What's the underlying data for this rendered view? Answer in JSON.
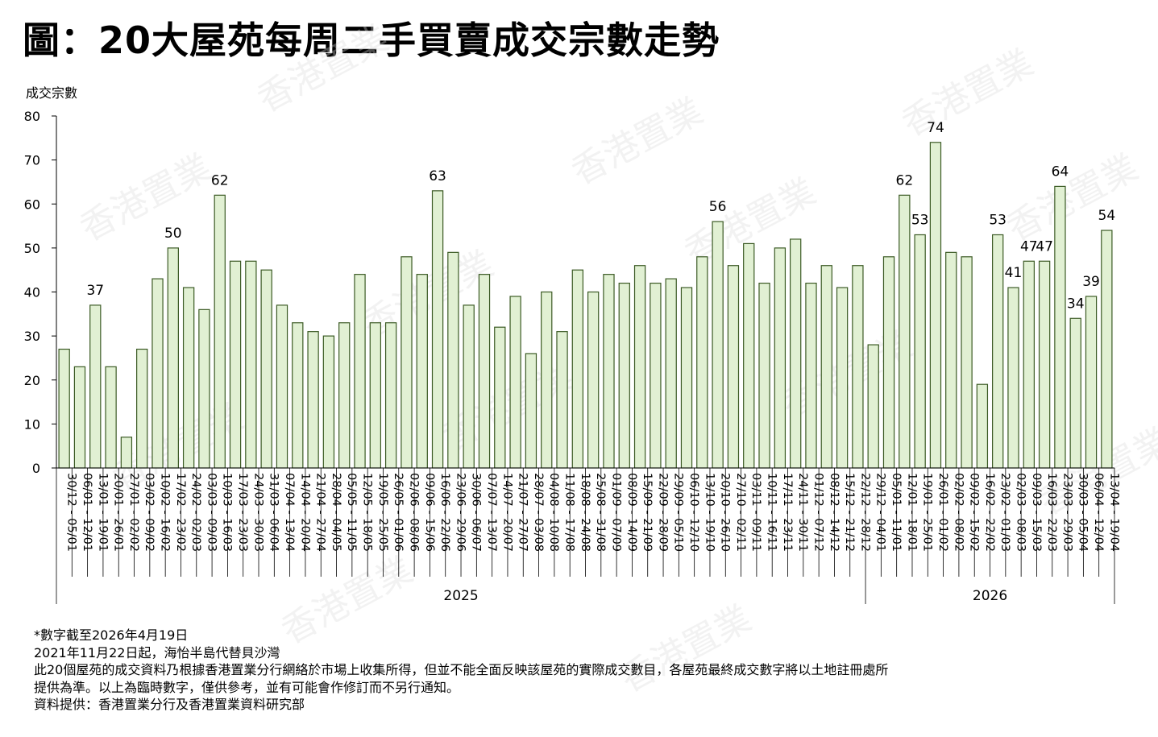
{
  "title": "圖：20大屋苑每周二手買賣成交宗數走勢",
  "notes": [
    "*數字截至2026年4月19日",
    "2021年11月22日起，海怡半島代替貝沙灣",
    "此20個屋苑的成交資料乃根據香港置業分行網絡於市場上收集所得，但並不能全面反映該屋苑的實際成交數目，各屋苑最終成交數字將以土地註冊處所",
    "提供為準。以上為臨時數字，僅供參考，並有可能會作修訂而不另行通知。",
    "資料提供：香港置業分行及香港置業資料研究部"
  ],
  "watermark": "香港置業",
  "colors": {
    "bar_fill": "#e1f0d3",
    "bar_stroke": "#3b5a24"
  },
  "chart_data": {
    "type": "bar",
    "ylabel": "成交宗數",
    "ylim": [
      0,
      80
    ],
    "yticks": [
      0,
      10,
      20,
      30,
      40,
      50,
      60,
      70,
      80
    ],
    "grid": false,
    "categories": [
      "30/12 - 05/01",
      "06/01 - 12/01",
      "13/01 - 19/01",
      "20/01 - 26/01",
      "27/01 - 02/02",
      "03/02 - 09/02",
      "10/02 - 16/02",
      "17/02 - 23/02",
      "24/02 - 02/03",
      "03/03 - 09/03",
      "10/03 - 16/03",
      "17/03 - 23/03",
      "24/03 - 30/03",
      "31/03 - 06/04",
      "07/04 - 13/04",
      "14/04 - 20/04",
      "21/04 - 27/04",
      "28/04 - 04/05",
      "05/05 - 11/05",
      "12/05 - 18/05",
      "19/05 - 25/05",
      "26/05 - 01/06",
      "02/06 - 08/06",
      "09/06 - 15/06",
      "16/06 - 22/06",
      "23/06 - 29/06",
      "30/06 - 06/07",
      "07/07 - 13/07",
      "14/07 - 20/07",
      "21/07 - 27/07",
      "28/07 - 03/08",
      "04/08 - 10/08",
      "11/08 - 17/08",
      "18/08 - 24/08",
      "25/08 - 31/08",
      "01/09 - 07/09",
      "08/09 - 14/09",
      "15/09 - 21/09",
      "22/09 - 28/09",
      "29/09 - 05/10",
      "06/10 - 12/10",
      "13/10 - 19/10",
      "20/10 - 26/10",
      "27/10 - 02/11",
      "03/11 - 09/11",
      "10/11 - 16/11",
      "17/11 - 23/11",
      "24/11 - 30/11",
      "01/12 - 07/12",
      "08/12 - 14/12",
      "15/12 - 21/12",
      "22/12 - 28/12",
      "29/12 - 04/01",
      "05/01 - 11/01",
      "12/01 - 18/01",
      "19/01 - 25/01",
      "26/01 - 01/02",
      "02/02 - 08/02",
      "09/02 - 15/02",
      "16/02 - 22/02",
      "23/02 - 01/03",
      "02/03 - 08/03",
      "09/03 - 15/03",
      "16/03 - 22/03",
      "23/03 - 29/03",
      "30/03 - 05/04",
      "06/04 - 12/04",
      "13/04 - 19/04"
    ],
    "values": [
      27,
      23,
      37,
      23,
      7,
      27,
      43,
      50,
      41,
      36,
      62,
      47,
      47,
      45,
      37,
      33,
      31,
      30,
      33,
      44,
      33,
      33,
      48,
      44,
      63,
      49,
      37,
      44,
      32,
      39,
      26,
      40,
      31,
      45,
      40,
      44,
      42,
      46,
      42,
      43,
      41,
      48,
      56,
      46,
      51,
      42,
      50,
      52,
      42,
      46,
      41,
      46,
      28,
      48,
      62,
      53,
      74,
      49,
      48,
      19,
      53,
      41,
      47,
      47,
      64,
      34,
      39,
      54
    ],
    "data_labels": [
      {
        "index": 2,
        "text": "37"
      },
      {
        "index": 7,
        "text": "50"
      },
      {
        "index": 10,
        "text": "62"
      },
      {
        "index": 24,
        "text": "63"
      },
      {
        "index": 42,
        "text": "56"
      },
      {
        "index": 54,
        "text": "62"
      },
      {
        "index": 55,
        "text": "53"
      },
      {
        "index": 56,
        "text": "74"
      },
      {
        "index": 60,
        "text": "53"
      },
      {
        "index": 61,
        "text": "41"
      },
      {
        "index": 62,
        "text": "47"
      },
      {
        "index": 63,
        "text": "47"
      },
      {
        "index": 64,
        "text": "64"
      },
      {
        "index": 65,
        "text": "34"
      },
      {
        "index": 66,
        "text": "39"
      },
      {
        "index": 67,
        "text": "54"
      }
    ],
    "year_groups": [
      {
        "label": "2025",
        "start": 0,
        "end": 51
      },
      {
        "label": "2026",
        "start": 52,
        "end": 67
      }
    ]
  }
}
